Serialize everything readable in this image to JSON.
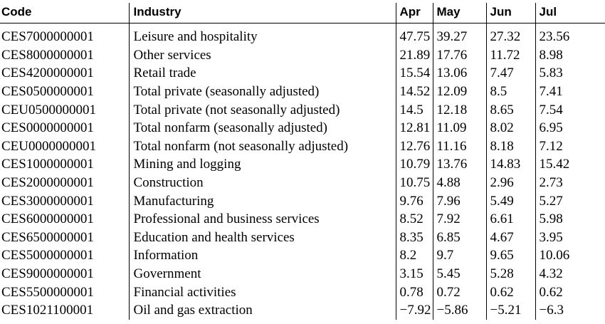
{
  "table": {
    "headers": [
      "Code",
      "Industry",
      "Apr",
      "May",
      "Jun",
      "Jul"
    ],
    "rows": [
      [
        "CES7000000001",
        "Leisure and hospitality",
        "47.75",
        "39.27",
        "27.32",
        "23.56"
      ],
      [
        "CES8000000001",
        "Other services",
        "21.89",
        "17.76",
        "11.72",
        "8.98"
      ],
      [
        "CES4200000001",
        "Retail trade",
        "15.54",
        "13.06",
        "7.47",
        "5.83"
      ],
      [
        "CES0500000001",
        "Total private (seasonally adjusted)",
        "14.52",
        "12.09",
        "8.5",
        "7.41"
      ],
      [
        "CEU0500000001",
        "Total private (not seasonally adjusted)",
        "14.5",
        "12.18",
        "8.65",
        "7.54"
      ],
      [
        "CES0000000001",
        "Total nonfarm (seasonally adjusted)",
        "12.81",
        "11.09",
        "8.02",
        "6.95"
      ],
      [
        "CEU0000000001",
        "Total nonfarm (not seasonally adjusted)",
        "12.76",
        "11.16",
        "8.18",
        "7.12"
      ],
      [
        "CES1000000001",
        "Mining and logging",
        "10.79",
        "13.76",
        "14.83",
        "15.42"
      ],
      [
        "CES2000000001",
        "Construction",
        "10.75",
        "4.88",
        "2.96",
        "2.73"
      ],
      [
        "CES3000000001",
        "Manufacturing",
        "9.76",
        "7.96",
        "5.49",
        "5.27"
      ],
      [
        "CES6000000001",
        "Professional and business services",
        "8.52",
        "7.92",
        "6.61",
        "5.98"
      ],
      [
        "CES6500000001",
        "Education and health services",
        "8.35",
        "6.85",
        "4.67",
        "3.95"
      ],
      [
        "CES5000000001",
        "Information",
        "8.2",
        "9.7",
        "9.65",
        "10.06"
      ],
      [
        "CES9000000001",
        "Government",
        "3.15",
        "5.45",
        "5.28",
        "4.32"
      ],
      [
        "CES5500000001",
        "Financial activities",
        "0.78",
        "0.72",
        "0.62",
        "0.62"
      ],
      [
        "CES1021100001",
        "Oil and gas extraction",
        "−7.92",
        "−5.86",
        "−5.21",
        "−6.3"
      ]
    ]
  }
}
